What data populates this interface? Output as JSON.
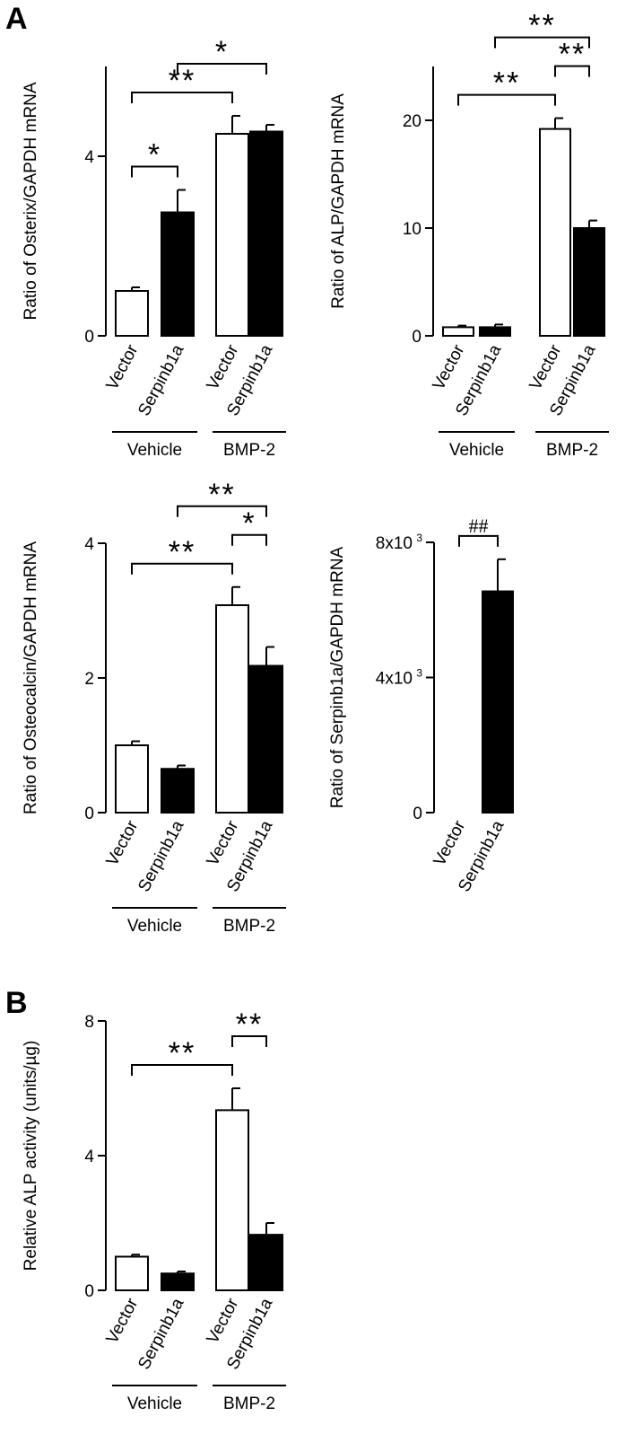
{
  "panel_labels": [
    "A",
    "B"
  ],
  "colors": {
    "open_bar": "#ffffff",
    "filled_bar": "#000000",
    "stroke": "#000000"
  },
  "chart_data": [
    {
      "type": "bar",
      "panel": "A",
      "ylabel": "Ratio of Osterix/GAPDH mRNA",
      "categories": [
        "Vector",
        "Serpinb1a",
        "Vector",
        "Serpinb1a"
      ],
      "groups": [
        {
          "label": "Vehicle",
          "span": [
            0,
            1
          ]
        },
        {
          "label": "BMP-2",
          "span": [
            2,
            3
          ]
        }
      ],
      "values": [
        1.0,
        2.75,
        4.5,
        4.55
      ],
      "errors": [
        0.08,
        0.5,
        0.4,
        0.15
      ],
      "fills": [
        "open",
        "filled",
        "open",
        "filled"
      ],
      "ylim": [
        0,
        6
      ],
      "yticks": [
        0,
        4
      ],
      "ytick_labels": [
        "0",
        "4"
      ],
      "significance": [
        {
          "from": 0,
          "to": 1,
          "label": "*"
        },
        {
          "from": 0,
          "to": 2,
          "label": "**"
        },
        {
          "from": 1,
          "to": 3,
          "label": "*"
        }
      ]
    },
    {
      "type": "bar",
      "panel": "A",
      "ylabel": "Ratio of ALP/GAPDH mRNA",
      "categories": [
        "Vector",
        "Serpinb1a",
        "Vector",
        "Serpinb1a"
      ],
      "groups": [
        {
          "label": "Vehicle",
          "span": [
            0,
            1
          ]
        },
        {
          "label": "BMP-2",
          "span": [
            2,
            3
          ]
        }
      ],
      "values": [
        0.8,
        0.8,
        19.2,
        10.0
      ],
      "errors": [
        0.15,
        0.25,
        1.0,
        0.7
      ],
      "fills": [
        "open",
        "filled",
        "open",
        "filled"
      ],
      "ylim": [
        0,
        25
      ],
      "yticks": [
        0,
        10,
        20
      ],
      "ytick_labels": [
        "0",
        "10",
        "20"
      ],
      "significance": [
        {
          "from": 0,
          "to": 2,
          "label": "**"
        },
        {
          "from": 2,
          "to": 3,
          "label": "**"
        },
        {
          "from": 1,
          "to": 3,
          "label": "**"
        }
      ]
    },
    {
      "type": "bar",
      "panel": "A",
      "ylabel": "Ratio of Osteocalcin/GAPDH mRNA",
      "categories": [
        "Vector",
        "Serpinb1a",
        "Vector",
        "Serpinb1a"
      ],
      "groups": [
        {
          "label": "Vehicle",
          "span": [
            0,
            1
          ]
        },
        {
          "label": "BMP-2",
          "span": [
            2,
            3
          ]
        }
      ],
      "values": [
        1.0,
        0.65,
        3.08,
        2.18
      ],
      "errors": [
        0.06,
        0.05,
        0.27,
        0.28
      ],
      "fills": [
        "open",
        "filled",
        "open",
        "filled"
      ],
      "ylim": [
        0,
        4
      ],
      "yticks": [
        0,
        2,
        4
      ],
      "ytick_labels": [
        "0",
        "2",
        "4"
      ],
      "significance": [
        {
          "from": 0,
          "to": 2,
          "label": "**"
        },
        {
          "from": 2,
          "to": 3,
          "label": "*"
        },
        {
          "from": 1,
          "to": 3,
          "label": "**"
        }
      ]
    },
    {
      "type": "bar",
      "panel": "A",
      "ylabel": "Ratio of Serpinb1a/GAPDH mRNA",
      "categories": [
        "Vector",
        "Serpinb1a"
      ],
      "groups": [],
      "values": [
        0,
        6550
      ],
      "errors": [
        0,
        950
      ],
      "fills": [
        "open",
        "filled"
      ],
      "ylim": [
        0,
        8000
      ],
      "yticks": [
        0,
        4000,
        8000
      ],
      "ytick_labels": [
        "0",
        "4x10",
        "8x10"
      ],
      "ytick_exponents": [
        "",
        "3",
        "3"
      ],
      "significance": [
        {
          "from": 0,
          "to": 1,
          "label": "##"
        }
      ]
    },
    {
      "type": "bar",
      "panel": "B",
      "ylabel": "Relative ALP activity (units/µg)",
      "categories": [
        "Vector",
        "Serpinb1a",
        "Vector",
        "Serpinb1a"
      ],
      "groups": [
        {
          "label": "Vehicle",
          "span": [
            0,
            1
          ]
        },
        {
          "label": "BMP-2",
          "span": [
            2,
            3
          ]
        }
      ],
      "values": [
        1.0,
        0.5,
        5.35,
        1.65
      ],
      "errors": [
        0.06,
        0.06,
        0.65,
        0.35
      ],
      "fills": [
        "open",
        "filled",
        "open",
        "filled"
      ],
      "ylim": [
        0,
        8
      ],
      "yticks": [
        0,
        4,
        8
      ],
      "ytick_labels": [
        "0",
        "4",
        "8"
      ],
      "significance": [
        {
          "from": 0,
          "to": 2,
          "label": "**"
        },
        {
          "from": 2,
          "to": 3,
          "label": "**"
        }
      ]
    }
  ]
}
